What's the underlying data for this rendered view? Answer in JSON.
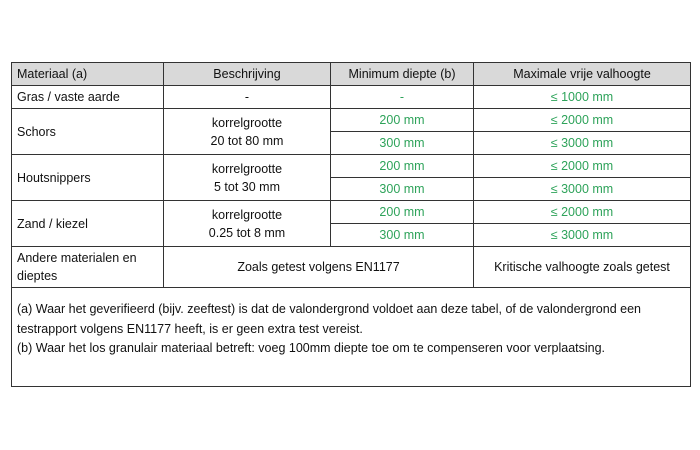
{
  "headers": [
    "Materiaal (a)",
    "Beschrijving",
    "Minimum diepte (b)",
    "Maximale vrije valhoogte"
  ],
  "rows": {
    "gras": {
      "material": "Gras / vaste aarde",
      "description": "-",
      "depth": "-",
      "height": "≤ 1000 mm"
    },
    "schors": {
      "material": "Schors",
      "description_1": "korrelgrootte",
      "description_2": "20 tot 80 mm",
      "depth_1": "200 mm",
      "height_1": "≤ 2000 mm",
      "depth_2": "300 mm",
      "height_2": "≤ 3000 mm"
    },
    "houtsnippers": {
      "material": "Houtsnippers",
      "description_1": "korrelgrootte",
      "description_2": "5 tot 30 mm",
      "depth_1": "200 mm",
      "height_1": "≤ 2000 mm",
      "depth_2": "300 mm",
      "height_2": "≤ 3000 mm"
    },
    "zand": {
      "material": "Zand / kiezel",
      "description_1": "korrelgrootte",
      "description_2": "0.25 tot 8 mm",
      "depth_1": "200 mm",
      "height_1": "≤ 2000 mm",
      "depth_2": "300 mm",
      "height_2": "≤ 3000 mm"
    },
    "andere": {
      "material": "Andere materialen en dieptes",
      "description": "Zoals getest volgens EN1177",
      "height": "Kritische valhoogte zoals getest"
    }
  },
  "notes": {
    "a": "(a) Waar het geverifieerd (bijv. zeeftest) is dat de valondergrond voldoet aan deze tabel, of de valondergrond een testrapport volgens EN1177 heeft, is er geen extra test vereist.",
    "b": "(b) Waar het los granulair materiaal betreft: voeg 100mm diepte toe om te compenseren voor verplaatsing."
  },
  "colors": {
    "header_bg": "#d9d9d9",
    "value_green": "#2ea35a"
  }
}
